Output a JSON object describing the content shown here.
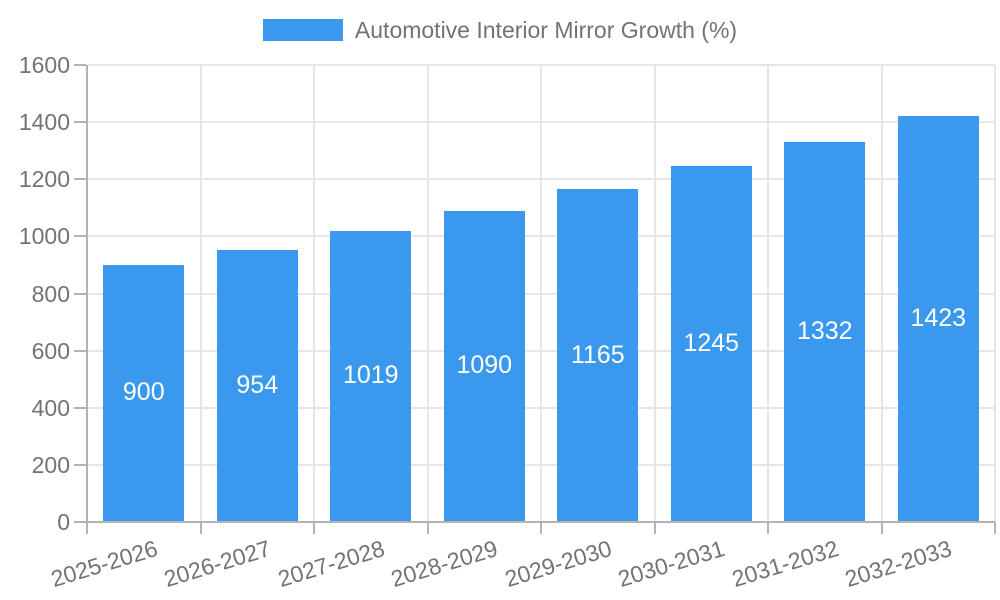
{
  "chart_data": {
    "type": "bar",
    "title": "Automotive Interior Mirror Growth (%)",
    "legend_position": "top",
    "categories": [
      "2025-2026",
      "2026-2027",
      "2027-2028",
      "2028-2029",
      "2029-2030",
      "2030-2031",
      "2031-2032",
      "2032-2033"
    ],
    "series": [
      {
        "name": "Automotive Interior Mirror Growth (%)",
        "values": [
          900,
          954,
          1019,
          1090,
          1165,
          1245,
          1332,
          1423
        ]
      }
    ],
    "value_labels": [
      "900",
      "954",
      "1019",
      "1090",
      "1165",
      "1245",
      "1332",
      "1423"
    ],
    "xlabel": "",
    "ylabel": "",
    "ylim": [
      0,
      1600
    ],
    "yticks": [
      0,
      200,
      400,
      600,
      800,
      1000,
      1200,
      1400,
      1600
    ],
    "grid": true,
    "x_label_rotation_deg": -17,
    "colors": {
      "bar": "#3A99EC",
      "grid": "#E6E6E6",
      "axis": "#B3B3B3",
      "text": "#737373",
      "value_label": "#FFFFFF",
      "background": "#FFFFFF"
    }
  }
}
